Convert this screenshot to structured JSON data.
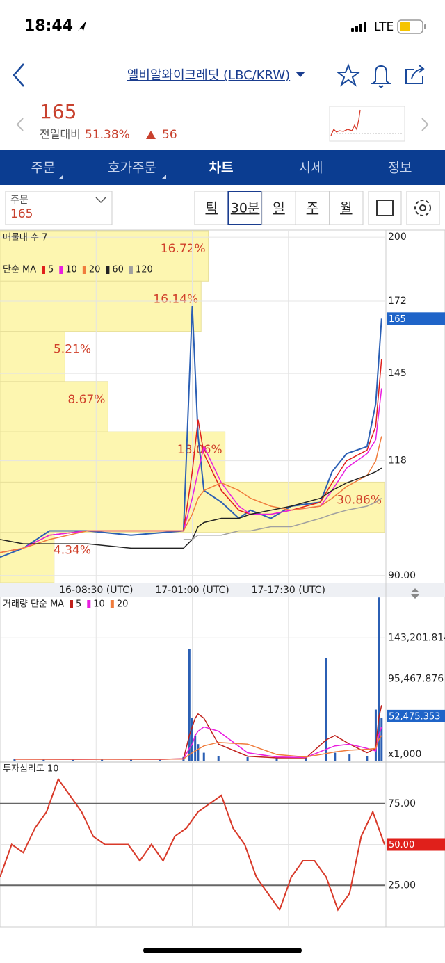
{
  "status_bar": {
    "time": "18:44",
    "network": "LTE"
  },
  "header": {
    "title": "엘비알와이크레딧 (LBC/KRW)"
  },
  "quote": {
    "price": "165",
    "change_label": "전일대비",
    "change_percent": "51.38%",
    "change_amount": "56"
  },
  "tabs": [
    "주문",
    "호가주문",
    "차트",
    "시세",
    "정보"
  ],
  "order_box": {
    "label": "주문",
    "value": "165"
  },
  "periods": [
    "틱",
    "30분",
    "일",
    "주",
    "월"
  ],
  "chart_data": [
    {
      "type": "line",
      "profile_title": "매물대 수 7",
      "ma_title": "단순 MA",
      "log_scale": true,
      "ylim": [
        88.5,
        203
      ],
      "yticks": [
        200,
        172,
        145,
        118,
        {
          "value": 90,
          "label": "90.00"
        }
      ],
      "xlim": [
        0,
        132
      ],
      "xticks": [
        {
          "value": 33,
          "label": "16-08:30 (UTC)"
        },
        {
          "value": 66,
          "label": "17-01:00 (UTC)"
        },
        {
          "value": 99,
          "label": "17-17:30 (UTC)"
        }
      ],
      "current_price": 165,
      "current_price_color": "#1f64c8",
      "volume_profile": {
        "color": "#fdf6b0",
        "values": [
          16.72,
          16.14,
          5.21,
          8.67,
          18.06,
          30.86,
          4.34
        ],
        "value_labels": [
          "16.72%",
          "16.14%",
          "5.21%",
          "8.67%",
          "18.06%",
          "30.86%",
          "4.34%"
        ]
      },
      "x": [
        0,
        8,
        17,
        30,
        45,
        63,
        66,
        68,
        70,
        76,
        82,
        86,
        93,
        100,
        110,
        114,
        119,
        126,
        129,
        131
      ],
      "price_color": "#2b5fb4",
      "price_values": [
        94,
        96,
        100,
        100,
        99,
        100,
        170,
        125,
        110,
        107,
        103,
        105,
        103,
        106,
        107,
        115,
        120,
        122,
        135,
        165
      ],
      "series": [
        {
          "name": "5",
          "color": "#e0201b",
          "values": [
            95,
            96,
            99,
            100,
            100,
            100,
            115,
            130,
            120,
            110,
            105,
            104,
            104,
            105,
            107,
            112,
            118,
            121,
            128,
            150
          ]
        },
        {
          "name": "10",
          "color": "#e91ee0",
          "values": [
            95,
            96,
            99,
            100,
            100,
            100,
            108,
            115,
            122,
            112,
            106,
            104,
            104,
            105,
            106,
            110,
            116,
            120,
            124,
            140
          ]
        },
        {
          "name": "20",
          "color": "#f07c3c",
          "values": [
            95,
            96,
            98,
            100,
            100,
            100,
            104,
            108,
            110,
            112,
            110,
            108,
            106,
            105,
            106,
            108,
            111,
            114,
            118,
            125
          ]
        },
        {
          "name": "60",
          "color": "#222222",
          "values": [
            98,
            97,
            97,
            97,
            96,
            96,
            98,
            101,
            102,
            103,
            103,
            104,
            105,
            106,
            108,
            110,
            112,
            114,
            115,
            116
          ]
        },
        {
          "name": "120",
          "color": "#a0a0a0",
          "values": [
            null,
            null,
            null,
            null,
            null,
            98,
            98,
            99,
            99,
            99,
            100,
            100,
            101,
            101,
            103,
            104,
            105,
            106,
            107,
            108
          ]
        }
      ]
    },
    {
      "type": "bar",
      "title": "거래량 단순 MA",
      "unit_label": "x1,000",
      "color": "#2b5fb4",
      "ylim": [
        0,
        191000
      ],
      "yticks": [
        {
          "value": 143201.814,
          "label": "143,201.814"
        },
        {
          "value": 95467.876,
          "label": "95,467.876"
        }
      ],
      "xlim": [
        0,
        132
      ],
      "current_value": {
        "value": 52475.353,
        "label": "52,475.353"
      },
      "x": [
        5,
        15,
        25,
        35,
        45,
        55,
        63,
        65,
        66,
        67,
        68,
        70,
        75,
        85,
        95,
        105,
        112,
        115,
        120,
        126,
        129,
        130,
        131
      ],
      "values": [
        3000,
        2000,
        2000,
        3000,
        2000,
        2000,
        5000,
        130000,
        50000,
        30000,
        20000,
        10000,
        6000,
        5000,
        4000,
        4000,
        120000,
        10000,
        8000,
        6000,
        60000,
        190000,
        50000
      ],
      "series": [
        {
          "name": "5",
          "color": "#c0201b",
          "values": [
            2500,
            2400,
            2300,
            2500,
            2400,
            2300,
            3000,
            30000,
            40000,
            50000,
            55000,
            50000,
            20000,
            6000,
            4000,
            4000,
            25000,
            30000,
            20000,
            10000,
            15000,
            50000,
            65000
          ]
        },
        {
          "name": "10",
          "color": "#e91ee0",
          "values": [
            2500,
            2500,
            2400,
            2500,
            2500,
            2400,
            2800,
            15000,
            20000,
            30000,
            35000,
            40000,
            35000,
            10000,
            5000,
            4500,
            14000,
            18000,
            20000,
            15000,
            12000,
            30000,
            40000
          ]
        },
        {
          "name": "20",
          "color": "#f07c3c",
          "values": [
            2500,
            2500,
            2500,
            2500,
            2500,
            2500,
            2700,
            8000,
            10000,
            12000,
            14000,
            18000,
            22000,
            20000,
            8000,
            5000,
            9000,
            11000,
            13000,
            14000,
            15000,
            25000,
            30000
          ]
        }
      ]
    },
    {
      "type": "line",
      "title": "투자심리도 10",
      "color": "#d83a2a",
      "ylim": [
        0,
        100
      ],
      "yticks": [
        {
          "value": 75,
          "label": "75.00"
        },
        {
          "value": 25,
          "label": "25.00"
        }
      ],
      "xlim": [
        0,
        132
      ],
      "current_value": {
        "value": 50,
        "label": "50.00"
      },
      "current_value_color": "#e0201b",
      "x": [
        0,
        4,
        8,
        12,
        16,
        20,
        24,
        28,
        32,
        36,
        40,
        44,
        48,
        52,
        56,
        60,
        64,
        68,
        72,
        76,
        80,
        84,
        88,
        92,
        96,
        100,
        104,
        108,
        112,
        116,
        120,
        124,
        128,
        132
      ],
      "values": [
        30,
        50,
        45,
        60,
        70,
        90,
        80,
        70,
        55,
        50,
        50,
        50,
        40,
        50,
        40,
        55,
        60,
        70,
        75,
        80,
        60,
        50,
        30,
        20,
        10,
        30,
        40,
        40,
        30,
        10,
        20,
        55,
        70,
        50
      ]
    }
  ]
}
